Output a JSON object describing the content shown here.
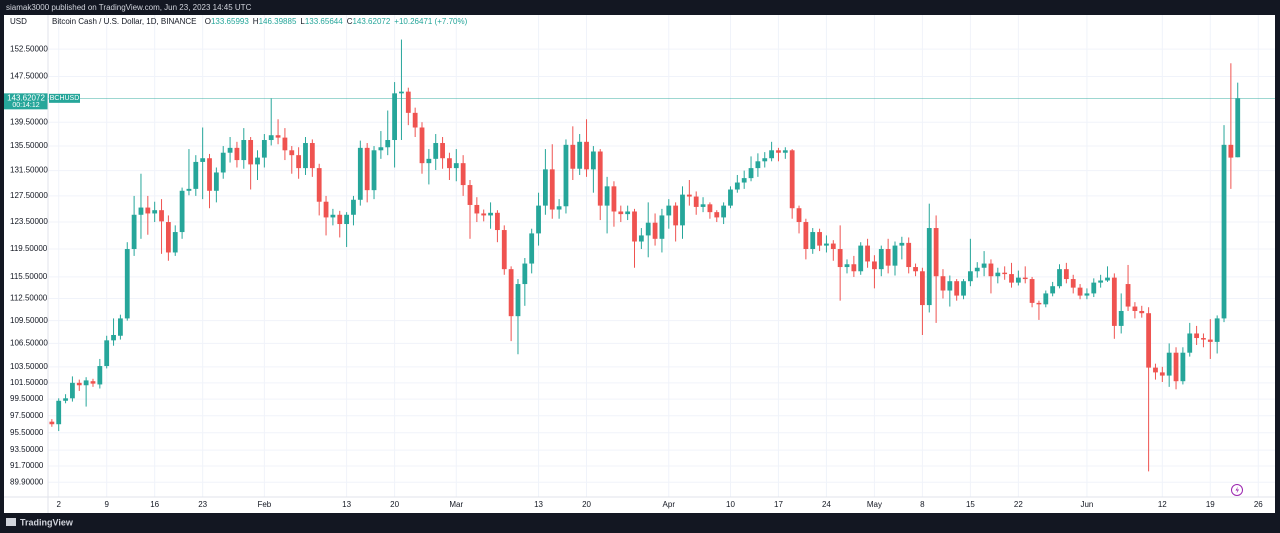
{
  "header": "siamak3000 published on TradingView.com, Jun 23, 2023 14:45 UTC",
  "footer": "TradingView",
  "chart_data": {
    "type": "candlestick",
    "title": "Bitcoin Cash / U.S. Dollar, 1D, BINANCE",
    "legend": [
      {
        "key": "O",
        "value": "133.65993"
      },
      {
        "key": "H",
        "value": "146.39885"
      },
      {
        "key": "L",
        "value": "133.65644"
      },
      {
        "key": "C",
        "value": "143.62072"
      }
    ],
    "change": "+10.26471 (+7.70%)",
    "currency": "USD",
    "symbol": "BCHUSD",
    "last_price": {
      "value": 143.62072,
      "label": "143.62072"
    },
    "countdown": "00:14:12",
    "up_color": "#26a69a",
    "down_color": "#ef5350",
    "log_scale": true,
    "grid": true,
    "ylim": [
      88.3,
      158.8
    ],
    "yticks": [
      {
        "value": 152.5,
        "label": "152.50000"
      },
      {
        "value": 147.5,
        "label": "147.50000"
      },
      {
        "value": 139.5,
        "label": "139.50000"
      },
      {
        "value": 135.5,
        "label": "135.50000"
      },
      {
        "value": 131.5,
        "label": "131.50000"
      },
      {
        "value": 127.5,
        "label": "127.50000"
      },
      {
        "value": 123.5,
        "label": "123.50000"
      },
      {
        "value": 119.5,
        "label": "119.50000"
      },
      {
        "value": 115.5,
        "label": "115.50000"
      },
      {
        "value": 112.5,
        "label": "112.50000"
      },
      {
        "value": 109.5,
        "label": "109.50000"
      },
      {
        "value": 106.5,
        "label": "106.50000"
      },
      {
        "value": 103.5,
        "label": "103.50000"
      },
      {
        "value": 101.5,
        "label": "101.50000"
      },
      {
        "value": 99.5,
        "label": "99.50000"
      },
      {
        "value": 97.5,
        "label": "97.50000"
      },
      {
        "value": 95.5,
        "label": "95.50000"
      },
      {
        "value": 93.5,
        "label": "93.50000"
      },
      {
        "value": 91.7,
        "label": "91.70000"
      },
      {
        "value": 89.9,
        "label": "89.90000"
      }
    ],
    "xlim": [
      "2022-12-31",
      "2023-06-28"
    ],
    "xticks": [
      {
        "value": "2023-01-02",
        "label": "2"
      },
      {
        "value": "2023-01-09",
        "label": "9"
      },
      {
        "value": "2023-01-16",
        "label": "16"
      },
      {
        "value": "2023-01-23",
        "label": "23"
      },
      {
        "value": "2023-02-01",
        "label": "Feb"
      },
      {
        "value": "2023-02-13",
        "label": "13"
      },
      {
        "value": "2023-02-20",
        "label": "20"
      },
      {
        "value": "2023-03-01",
        "label": "Mar"
      },
      {
        "value": "2023-03-13",
        "label": "13"
      },
      {
        "value": "2023-03-20",
        "label": "20"
      },
      {
        "value": "2023-04-01",
        "label": "Apr"
      },
      {
        "value": "2023-04-10",
        "label": "10"
      },
      {
        "value": "2023-04-17",
        "label": "17"
      },
      {
        "value": "2023-04-24",
        "label": "24"
      },
      {
        "value": "2023-05-01",
        "label": "May"
      },
      {
        "value": "2023-05-08",
        "label": "8"
      },
      {
        "value": "2023-05-15",
        "label": "15"
      },
      {
        "value": "2023-05-22",
        "label": "22"
      },
      {
        "value": "2023-06-01",
        "label": "Jun"
      },
      {
        "value": "2023-06-12",
        "label": "12"
      },
      {
        "value": "2023-06-19",
        "label": "19"
      },
      {
        "value": "2023-06-26",
        "label": "26"
      }
    ],
    "x": [
      "2023-01-01",
      "2023-01-02",
      "2023-01-03",
      "2023-01-04",
      "2023-01-05",
      "2023-01-06",
      "2023-01-07",
      "2023-01-08",
      "2023-01-09",
      "2023-01-10",
      "2023-01-11",
      "2023-01-12",
      "2023-01-13",
      "2023-01-14",
      "2023-01-15",
      "2023-01-16",
      "2023-01-17",
      "2023-01-18",
      "2023-01-19",
      "2023-01-20",
      "2023-01-21",
      "2023-01-22",
      "2023-01-23",
      "2023-01-24",
      "2023-01-25",
      "2023-01-26",
      "2023-01-27",
      "2023-01-28",
      "2023-01-29",
      "2023-01-30",
      "2023-01-31",
      "2023-02-01",
      "2023-02-02",
      "2023-02-03",
      "2023-02-04",
      "2023-02-05",
      "2023-02-06",
      "2023-02-07",
      "2023-02-08",
      "2023-02-09",
      "2023-02-10",
      "2023-02-11",
      "2023-02-12",
      "2023-02-13",
      "2023-02-14",
      "2023-02-15",
      "2023-02-16",
      "2023-02-17",
      "2023-02-18",
      "2023-02-19",
      "2023-02-20",
      "2023-02-21",
      "2023-02-22",
      "2023-02-23",
      "2023-02-24",
      "2023-02-25",
      "2023-02-26",
      "2023-02-27",
      "2023-02-28",
      "2023-03-01",
      "2023-03-02",
      "2023-03-03",
      "2023-03-04",
      "2023-03-05",
      "2023-03-06",
      "2023-03-07",
      "2023-03-08",
      "2023-03-09",
      "2023-03-10",
      "2023-03-11",
      "2023-03-12",
      "2023-03-13",
      "2023-03-14",
      "2023-03-15",
      "2023-03-16",
      "2023-03-17",
      "2023-03-18",
      "2023-03-19",
      "2023-03-20",
      "2023-03-21",
      "2023-03-22",
      "2023-03-23",
      "2023-03-24",
      "2023-03-25",
      "2023-03-26",
      "2023-03-27",
      "2023-03-28",
      "2023-03-29",
      "2023-03-30",
      "2023-03-31",
      "2023-04-01",
      "2023-04-02",
      "2023-04-03",
      "2023-04-04",
      "2023-04-05",
      "2023-04-06",
      "2023-04-07",
      "2023-04-08",
      "2023-04-09",
      "2023-04-10",
      "2023-04-11",
      "2023-04-12",
      "2023-04-13",
      "2023-04-14",
      "2023-04-15",
      "2023-04-16",
      "2023-04-17",
      "2023-04-18",
      "2023-04-19",
      "2023-04-20",
      "2023-04-21",
      "2023-04-22",
      "2023-04-23",
      "2023-04-24",
      "2023-04-25",
      "2023-04-26",
      "2023-04-27",
      "2023-04-28",
      "2023-04-29",
      "2023-04-30",
      "2023-05-01",
      "2023-05-02",
      "2023-05-03",
      "2023-05-04",
      "2023-05-05",
      "2023-05-06",
      "2023-05-07",
      "2023-05-08",
      "2023-05-09",
      "2023-05-10",
      "2023-05-11",
      "2023-05-12",
      "2023-05-13",
      "2023-05-14",
      "2023-05-15",
      "2023-05-16",
      "2023-05-17",
      "2023-05-18",
      "2023-05-19",
      "2023-05-20",
      "2023-05-21",
      "2023-05-22",
      "2023-05-23",
      "2023-05-24",
      "2023-05-25",
      "2023-05-26",
      "2023-05-27",
      "2023-05-28",
      "2023-05-29",
      "2023-05-30",
      "2023-05-31",
      "2023-06-01",
      "2023-06-02",
      "2023-06-03",
      "2023-06-04",
      "2023-06-05",
      "2023-06-06",
      "2023-06-07",
      "2023-06-08",
      "2023-06-09",
      "2023-06-10",
      "2023-06-11",
      "2023-06-12",
      "2023-06-13",
      "2023-06-14",
      "2023-06-15",
      "2023-06-16",
      "2023-06-17",
      "2023-06-18",
      "2023-06-19",
      "2023-06-20",
      "2023-06-21",
      "2023-06-22",
      "2023-06-23"
    ],
    "open": [
      96.8,
      96.5,
      99.3,
      99.6,
      101.5,
      101.2,
      101.7,
      101.3,
      103.6,
      106.9,
      107.5,
      109.8,
      119.5,
      124.6,
      125.7,
      124.8,
      125.3,
      123.5,
      119.0,
      122.0,
      128.3,
      128.6,
      132.9,
      133.5,
      128.3,
      131.2,
      134.4,
      135.2,
      133.2,
      136.5,
      132.5,
      133.6,
      136.5,
      137.3,
      136.9,
      134.8,
      134.0,
      131.9,
      136.0,
      131.9,
      126.6,
      124.2,
      124.6,
      123.2,
      124.6,
      126.9,
      135.2,
      128.4,
      134.8,
      135.3,
      136.5,
      144.5,
      144.8,
      141.1,
      138.6,
      132.7,
      133.4,
      136.0,
      133.5,
      131.9,
      132.7,
      129.2,
      126.1,
      124.8,
      124.5,
      124.9,
      122.3,
      116.6,
      110.1,
      114.5,
      117.4,
      121.8,
      126.0,
      131.7,
      125.4,
      125.9,
      135.7,
      131.8,
      136.2,
      131.7,
      134.6,
      126.0,
      129.0,
      125.1,
      124.7,
      125.1,
      120.6,
      121.5,
      123.4,
      121.0,
      124.5,
      126.0,
      123.0,
      127.7,
      127.4,
      125.8,
      126.2,
      125.0,
      124.2,
      126.0,
      128.5,
      129.6,
      130.3,
      131.9,
      133.0,
      133.5,
      134.8,
      134.4,
      134.8,
      125.6,
      123.5,
      119.5,
      122.0,
      120.0,
      120.3,
      119.5,
      116.9,
      117.3,
      116.3,
      120.0,
      117.7,
      116.6,
      119.5,
      117.1,
      120.0,
      120.4,
      116.9,
      116.3,
      111.6,
      122.6,
      115.6,
      113.6,
      114.9,
      112.9,
      114.9,
      116.3,
      116.8,
      117.4,
      115.6,
      116.1,
      115.9,
      114.7,
      115.4,
      115.2,
      111.9,
      111.7,
      113.2,
      114.2,
      116.6,
      115.2,
      114.0,
      112.9,
      113.2,
      114.7,
      115.0,
      115.4,
      108.8,
      114.5,
      111.4,
      110.8,
      110.5,
      103.4,
      102.8,
      102.4,
      105.3,
      101.7,
      105.3,
      107.8,
      107.2,
      107.0,
      106.7,
      109.8,
      135.7,
      133.65993
    ],
    "high": [
      97.1,
      99.6,
      100.1,
      102.3,
      101.9,
      102.2,
      102.0,
      104.5,
      107.5,
      109.8,
      110.3,
      120.5,
      127.5,
      131.0,
      127.5,
      126.6,
      127.0,
      124.5,
      123.0,
      128.8,
      135.0,
      134.0,
      138.6,
      134.2,
      132.0,
      135.5,
      137.0,
      136.2,
      138.5,
      137.0,
      134.8,
      137.5,
      143.6,
      140.0,
      138.5,
      135.5,
      135.3,
      137.0,
      136.6,
      132.6,
      127.5,
      125.5,
      125.2,
      125.0,
      127.5,
      136.4,
      136.0,
      135.5,
      138.0,
      141.5,
      146.5,
      154.3,
      145.5,
      142.0,
      139.5,
      135.0,
      137.5,
      137.0,
      134.4,
      135.0,
      134.0,
      130.0,
      127.3,
      125.4,
      126.5,
      125.3,
      123.0,
      117.0,
      115.2,
      118.2,
      122.5,
      128.0,
      135.0,
      135.8,
      127.0,
      136.6,
      138.8,
      137.5,
      140.0,
      135.5,
      135.0,
      130.5,
      129.8,
      126.0,
      126.0,
      125.5,
      122.6,
      126.5,
      124.8,
      125.5,
      127.0,
      126.5,
      129.0,
      130.0,
      128.2,
      127.3,
      126.5,
      125.3,
      126.5,
      129.0,
      130.8,
      131.5,
      133.8,
      134.3,
      134.5,
      136.2,
      135.2,
      135.3,
      135.0,
      126.0,
      124.0,
      122.6,
      122.5,
      121.5,
      120.8,
      123.0,
      118.0,
      118.5,
      120.5,
      121.0,
      118.6,
      120.0,
      121.0,
      120.6,
      121.3,
      121.2,
      117.4,
      116.8,
      126.3,
      124.5,
      116.6,
      115.7,
      115.2,
      115.2,
      121.0,
      117.6,
      119.2,
      118.0,
      116.8,
      117.0,
      117.5,
      116.4,
      117.0,
      115.5,
      112.2,
      113.6,
      114.8,
      117.3,
      117.5,
      115.8,
      114.5,
      113.9,
      115.3,
      115.8,
      117.0,
      116.0,
      113.2,
      117.2,
      112.0,
      111.5,
      111.3,
      103.9,
      103.5,
      106.5,
      106.0,
      106.0,
      109.2,
      108.8,
      107.8,
      109.7,
      110.2,
      139.0,
      149.9,
      146.39885
    ],
    "low": [
      96.2,
      95.7,
      99.0,
      99.2,
      100.5,
      98.6,
      101.0,
      100.8,
      103.3,
      106.2,
      107.0,
      109.5,
      118.5,
      121.0,
      121.6,
      123.5,
      118.8,
      117.8,
      118.5,
      121.0,
      127.6,
      127.5,
      127.0,
      125.6,
      126.5,
      130.2,
      132.8,
      132.0,
      131.8,
      128.5,
      130.0,
      132.0,
      135.6,
      135.8,
      133.2,
      131.0,
      130.2,
      130.8,
      130.5,
      124.5,
      121.5,
      123.0,
      121.2,
      119.8,
      123.0,
      126.0,
      126.5,
      127.0,
      133.4,
      134.0,
      132.0,
      136.5,
      139.0,
      137.0,
      131.0,
      129.3,
      131.6,
      131.8,
      130.0,
      129.8,
      127.5,
      121.0,
      123.5,
      123.6,
      122.5,
      120.5,
      115.8,
      106.8,
      105.1,
      111.5,
      116.0,
      120.0,
      124.6,
      124.0,
      124.0,
      124.8,
      130.0,
      130.8,
      130.5,
      128.0,
      123.8,
      121.8,
      122.8,
      123.5,
      123.8,
      116.8,
      119.5,
      118.3,
      120.0,
      119.0,
      122.5,
      120.6,
      121.0,
      126.0,
      124.6,
      125.0,
      124.0,
      123.5,
      123.2,
      125.6,
      128.0,
      128.6,
      129.8,
      130.5,
      132.0,
      133.0,
      133.0,
      133.4,
      124.0,
      121.8,
      118.0,
      118.8,
      119.2,
      119.0,
      117.8,
      112.2,
      116.0,
      115.5,
      115.8,
      116.8,
      113.9,
      115.6,
      116.0,
      115.7,
      118.0,
      116.0,
      115.6,
      107.6,
      110.6,
      109.2,
      112.5,
      111.4,
      112.2,
      112.4,
      114.2,
      115.4,
      115.6,
      113.2,
      114.6,
      115.1,
      114.0,
      114.3,
      114.6,
      111.3,
      109.6,
      111.3,
      112.8,
      113.9,
      114.6,
      113.2,
      112.4,
      112.4,
      112.7,
      114.0,
      114.8,
      107.1,
      107.8,
      110.8,
      109.8,
      109.9,
      91.1,
      101.9,
      101.6,
      101.0,
      100.7,
      101.3,
      104.8,
      106.3,
      106.0,
      104.5,
      105.2,
      109.3,
      128.6,
      133.65644
    ],
    "close": [
      96.5,
      99.3,
      99.6,
      101.5,
      101.2,
      101.8,
      101.4,
      103.6,
      106.9,
      107.6,
      109.8,
      119.5,
      124.6,
      125.7,
      124.8,
      125.3,
      123.6,
      119.0,
      122.0,
      128.3,
      128.6,
      132.9,
      133.5,
      128.3,
      131.2,
      134.4,
      135.2,
      133.2,
      136.5,
      132.5,
      133.6,
      136.5,
      137.3,
      136.9,
      134.8,
      134.0,
      131.9,
      136.0,
      131.9,
      126.6,
      124.2,
      124.6,
      123.2,
      124.6,
      126.9,
      135.2,
      128.4,
      134.8,
      135.3,
      136.5,
      144.5,
      144.8,
      141.1,
      138.6,
      132.7,
      133.4,
      136.0,
      133.5,
      131.9,
      132.7,
      129.2,
      126.1,
      124.8,
      124.5,
      124.9,
      122.3,
      116.6,
      110.1,
      114.5,
      117.4,
      121.8,
      126.0,
      131.7,
      125.4,
      125.9,
      135.7,
      131.8,
      136.2,
      131.7,
      134.6,
      126.0,
      129.0,
      125.1,
      124.7,
      125.1,
      120.6,
      121.5,
      123.4,
      121.0,
      124.5,
      126.0,
      123.0,
      127.7,
      127.4,
      125.8,
      126.2,
      125.0,
      124.2,
      126.0,
      128.5,
      129.6,
      130.3,
      131.9,
      133.0,
      133.5,
      134.8,
      134.4,
      134.8,
      125.6,
      123.5,
      119.5,
      122.0,
      120.0,
      120.3,
      119.5,
      116.9,
      117.3,
      116.3,
      120.0,
      117.7,
      116.6,
      119.5,
      117.1,
      120.0,
      120.4,
      116.9,
      116.3,
      111.6,
      122.6,
      115.6,
      113.6,
      114.9,
      112.9,
      114.9,
      116.3,
      116.8,
      117.4,
      115.6,
      116.1,
      115.9,
      114.7,
      115.4,
      115.2,
      111.9,
      111.7,
      113.2,
      114.2,
      116.6,
      115.2,
      114.0,
      112.9,
      113.2,
      114.7,
      115.0,
      115.4,
      108.8,
      110.8,
      111.4,
      110.8,
      110.5,
      103.4,
      102.8,
      102.4,
      105.3,
      101.7,
      105.3,
      107.8,
      107.2,
      107.0,
      106.7,
      109.8,
      135.7,
      133.6,
      143.62072
    ]
  }
}
